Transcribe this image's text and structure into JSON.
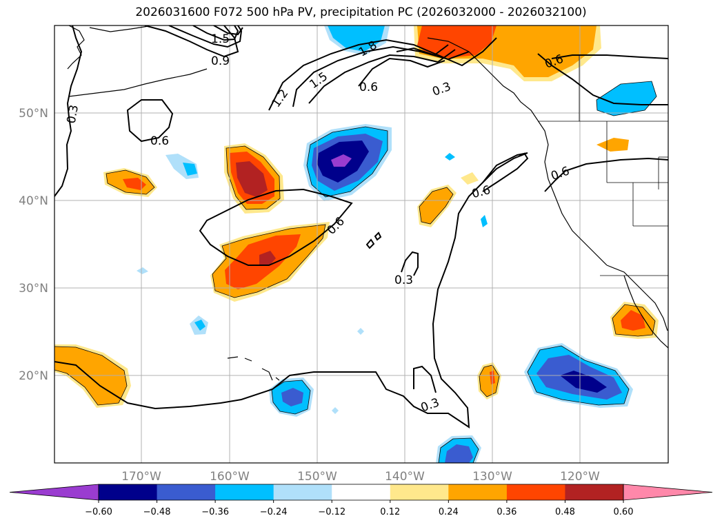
{
  "title": "2026031600 F072 500 hPa PV, precipitation PC (2026032000 - 2026032100)",
  "map": {
    "lon_range": [
      -180,
      -110
    ],
    "lat_range": [
      10,
      60
    ],
    "lon_ticks": [
      "170°W",
      "160°W",
      "150°W",
      "140°W",
      "130°W",
      "120°W"
    ],
    "lat_ticks": [
      "50°N",
      "40°N",
      "30°N",
      "20°N"
    ]
  },
  "contour_labels": [
    "1.5",
    "0.9",
    "1.2",
    "1.5",
    "1.8",
    "0.6",
    "0.3",
    "0.3",
    "0.6",
    "0.6",
    "0.6",
    "0.6",
    "0.3",
    "0.6",
    "0.3"
  ],
  "colorbar": {
    "ticks": [
      "−0.60",
      "−0.48",
      "−0.36",
      "−0.24",
      "−0.12",
      "0.12",
      "0.24",
      "0.36",
      "0.48",
      "0.60"
    ],
    "colors": [
      "#9a3cd0",
      "#00008b",
      "#3a5cd0",
      "#00bfff",
      "#b0e0fa",
      "#ffffff",
      "#ffe88c",
      "#ffa500",
      "#ff4500",
      "#b22222",
      "#ff88aa"
    ]
  },
  "chart_data": {
    "type": "map",
    "title": "2026031600 F072 500 hPa PV, precipitation PC (2026032000 - 2026032100)",
    "fields": {
      "contours": "500 hPa PV (0.3 - 1.8 PVU)",
      "shading": "precipitation PC"
    },
    "contour_levels": [
      0.3,
      0.6,
      0.9,
      1.2,
      1.5,
      1.8
    ],
    "shade_levels": [
      -0.6,
      -0.48,
      -0.36,
      -0.24,
      -0.12,
      0.12,
      0.24,
      0.36,
      0.48,
      0.6
    ],
    "features": [
      {
        "name": "negative max",
        "lat": 44,
        "lon": -150,
        "value": -0.6
      },
      {
        "name": "positive max",
        "lat": 41,
        "lon": -158,
        "value": 0.5
      },
      {
        "name": "negative max",
        "lat": 19,
        "lon": -120,
        "value": -0.5
      },
      {
        "name": "positive max",
        "lat": 57,
        "lon": -135,
        "value": 0.4
      }
    ]
  }
}
